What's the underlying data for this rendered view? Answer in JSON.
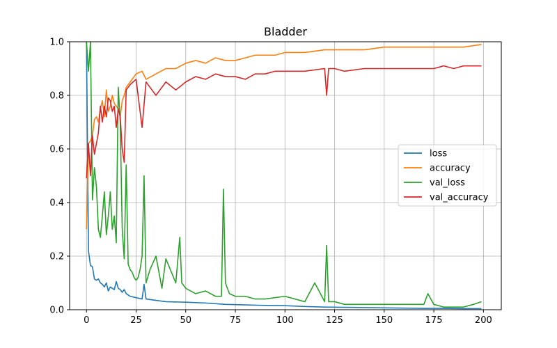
{
  "chart_data": {
    "type": "line",
    "title": "Bladder",
    "xlabel": "",
    "ylabel": "",
    "xlim": [
      -8.5,
      209
    ],
    "ylim": [
      0,
      1.0
    ],
    "xticks": [
      0,
      25,
      50,
      75,
      100,
      125,
      150,
      175,
      200
    ],
    "yticks": [
      0.0,
      0.2,
      0.4,
      0.6,
      0.8,
      1.0
    ],
    "xtick_labels": [
      "0",
      "25",
      "50",
      "75",
      "100",
      "125",
      "150",
      "175",
      "200"
    ],
    "ytick_labels": [
      "0.0",
      "0.2",
      "0.4",
      "0.6",
      "0.8",
      "1.0"
    ],
    "grid": true,
    "legend_position": "center-right",
    "series": [
      {
        "name": "loss",
        "color": "#1f77b4",
        "x": [
          0,
          1,
          2,
          3,
          4,
          5,
          6,
          7,
          8,
          9,
          10,
          11,
          12,
          13,
          14,
          15,
          16,
          17,
          18,
          19,
          20,
          22,
          25,
          28,
          29,
          30,
          35,
          40,
          50,
          60,
          70,
          80,
          90,
          100,
          110,
          120,
          130,
          140,
          150,
          160,
          170,
          180,
          190,
          199
        ],
        "y": [
          1.0,
          0.22,
          0.165,
          0.16,
          0.115,
          0.11,
          0.115,
          0.1,
          0.095,
          0.085,
          0.1,
          0.07,
          0.085,
          0.08,
          0.075,
          0.105,
          0.08,
          0.075,
          0.065,
          0.075,
          0.06,
          0.05,
          0.045,
          0.04,
          0.095,
          0.04,
          0.035,
          0.03,
          0.028,
          0.025,
          0.02,
          0.018,
          0.016,
          0.015,
          0.012,
          0.01,
          0.009,
          0.008,
          0.007,
          0.006,
          0.005,
          0.005,
          0.004,
          0.004
        ]
      },
      {
        "name": "accuracy",
        "color": "#ff7f0e",
        "x": [
          0,
          1,
          2,
          3,
          4,
          5,
          6,
          7,
          8,
          9,
          10,
          11,
          12,
          13,
          14,
          15,
          16,
          17,
          18,
          19,
          20,
          22,
          25,
          28,
          30,
          35,
          40,
          45,
          50,
          55,
          60,
          65,
          70,
          75,
          80,
          85,
          90,
          95,
          100,
          110,
          120,
          130,
          140,
          150,
          160,
          170,
          180,
          190,
          199
        ],
        "y": [
          0.3,
          0.62,
          0.63,
          0.65,
          0.71,
          0.72,
          0.7,
          0.75,
          0.78,
          0.72,
          0.82,
          0.74,
          0.76,
          0.8,
          0.77,
          0.76,
          0.75,
          0.72,
          0.78,
          0.8,
          0.83,
          0.85,
          0.88,
          0.89,
          0.86,
          0.88,
          0.9,
          0.9,
          0.92,
          0.93,
          0.92,
          0.94,
          0.93,
          0.93,
          0.94,
          0.95,
          0.95,
          0.95,
          0.96,
          0.96,
          0.97,
          0.97,
          0.97,
          0.98,
          0.98,
          0.98,
          0.98,
          0.98,
          0.99
        ]
      },
      {
        "name": "val_loss",
        "color": "#2ca02c",
        "x": [
          0,
          1,
          2,
          3,
          4,
          5,
          6,
          7,
          8,
          9,
          10,
          11,
          12,
          13,
          14,
          15,
          16,
          17,
          18,
          19,
          20,
          21,
          22,
          23,
          24,
          25,
          26,
          27,
          28,
          29,
          30,
          32,
          35,
          38,
          40,
          45,
          47,
          48,
          50,
          55,
          60,
          65,
          68,
          69,
          70,
          72,
          75,
          80,
          85,
          90,
          100,
          110,
          115,
          120,
          121,
          122,
          125,
          130,
          140,
          150,
          160,
          170,
          172,
          175,
          180,
          185,
          190,
          195,
          199
        ],
        "y": [
          1.0,
          0.89,
          1.0,
          0.41,
          0.53,
          0.46,
          0.3,
          0.27,
          0.35,
          0.44,
          0.28,
          0.35,
          0.44,
          0.3,
          0.35,
          0.25,
          0.83,
          0.7,
          0.3,
          0.19,
          0.54,
          0.17,
          0.15,
          0.14,
          0.12,
          0.11,
          0.12,
          0.15,
          0.2,
          0.5,
          0.1,
          0.15,
          0.2,
          0.08,
          0.19,
          0.1,
          0.27,
          0.1,
          0.08,
          0.06,
          0.07,
          0.05,
          0.05,
          0.45,
          0.1,
          0.06,
          0.05,
          0.05,
          0.04,
          0.04,
          0.05,
          0.03,
          0.1,
          0.03,
          0.24,
          0.03,
          0.03,
          0.02,
          0.02,
          0.02,
          0.02,
          0.02,
          0.06,
          0.02,
          0.01,
          0.01,
          0.01,
          0.02,
          0.03
        ]
      },
      {
        "name": "val_accuracy",
        "color": "#d62728",
        "x": [
          0,
          1,
          2,
          3,
          4,
          5,
          6,
          7,
          8,
          9,
          10,
          11,
          12,
          13,
          14,
          15,
          16,
          17,
          18,
          19,
          20,
          22,
          25,
          28,
          30,
          35,
          40,
          45,
          50,
          55,
          60,
          65,
          70,
          75,
          80,
          85,
          90,
          95,
          100,
          110,
          120,
          121,
          122,
          125,
          130,
          140,
          150,
          160,
          170,
          175,
          180,
          185,
          190,
          195,
          199
        ],
        "y": [
          0.49,
          0.62,
          0.5,
          0.65,
          0.58,
          0.62,
          0.66,
          0.76,
          0.7,
          0.76,
          0.72,
          0.79,
          0.78,
          0.74,
          0.76,
          0.68,
          0.75,
          0.72,
          0.6,
          0.55,
          0.82,
          0.84,
          0.86,
          0.68,
          0.85,
          0.8,
          0.85,
          0.82,
          0.85,
          0.87,
          0.86,
          0.88,
          0.87,
          0.87,
          0.86,
          0.88,
          0.88,
          0.89,
          0.89,
          0.89,
          0.9,
          0.8,
          0.9,
          0.9,
          0.89,
          0.9,
          0.9,
          0.9,
          0.9,
          0.9,
          0.91,
          0.9,
          0.91,
          0.91,
          0.91
        ]
      }
    ]
  }
}
